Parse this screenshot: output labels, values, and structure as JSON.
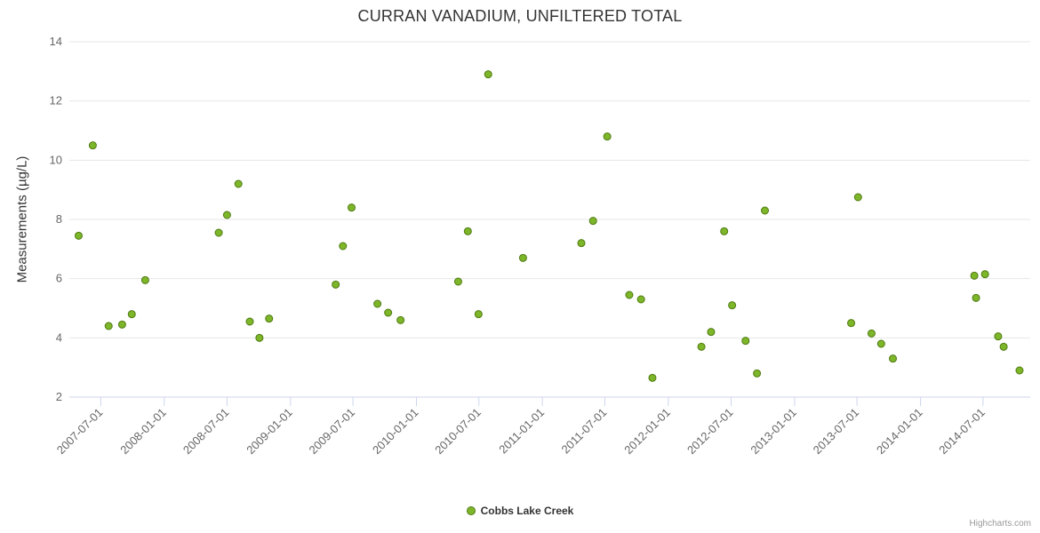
{
  "credit": "Highcharts.com",
  "chart_data": {
    "type": "scatter",
    "title": "CURRAN VANADIUM, UNFILTERED TOTAL",
    "xlabel": "",
    "ylabel": "Measurements (µg/L)",
    "ylim": [
      2,
      14
    ],
    "y_ticks": [
      2,
      4,
      6,
      8,
      10,
      12,
      14
    ],
    "x_ticks": [
      "2007-07-01",
      "2008-01-01",
      "2008-07-01",
      "2009-01-01",
      "2009-07-01",
      "2010-01-01",
      "2010-07-01",
      "2011-01-01",
      "2011-07-01",
      "2012-01-01",
      "2012-07-01",
      "2013-01-01",
      "2013-07-01",
      "2014-01-01",
      "2014-07-01"
    ],
    "x_range": [
      "2007-04-01",
      "2014-11-15"
    ],
    "grid": "horizontal-only",
    "legend_position": "bottom-center",
    "marker": {
      "color": "#7eb62a",
      "border": "#4d7a10",
      "radius": 4
    },
    "axis_line_color": "#ccd6eb",
    "grid_color": "#e6e6e6",
    "series": [
      {
        "name": "Cobbs Lake Creek",
        "points": [
          {
            "date": "2007-04-28",
            "value": 7.45
          },
          {
            "date": "2007-06-08",
            "value": 10.5
          },
          {
            "date": "2007-07-24",
            "value": 4.4
          },
          {
            "date": "2007-09-01",
            "value": 4.45
          },
          {
            "date": "2007-09-29",
            "value": 4.8
          },
          {
            "date": "2007-11-07",
            "value": 5.95
          },
          {
            "date": "2008-06-07",
            "value": 7.55
          },
          {
            "date": "2008-07-01",
            "value": 8.15
          },
          {
            "date": "2008-08-03",
            "value": 9.2
          },
          {
            "date": "2008-09-05",
            "value": 4.55
          },
          {
            "date": "2008-10-03",
            "value": 4.0
          },
          {
            "date": "2008-10-31",
            "value": 4.65
          },
          {
            "date": "2009-05-12",
            "value": 5.8
          },
          {
            "date": "2009-06-02",
            "value": 7.1
          },
          {
            "date": "2009-06-27",
            "value": 8.4
          },
          {
            "date": "2009-09-10",
            "value": 5.15
          },
          {
            "date": "2009-10-11",
            "value": 4.85
          },
          {
            "date": "2009-11-16",
            "value": 4.6
          },
          {
            "date": "2010-05-02",
            "value": 5.9
          },
          {
            "date": "2010-05-30",
            "value": 7.6
          },
          {
            "date": "2010-06-30",
            "value": 4.8
          },
          {
            "date": "2010-07-28",
            "value": 12.9
          },
          {
            "date": "2010-11-06",
            "value": 6.7
          },
          {
            "date": "2011-04-24",
            "value": 7.2
          },
          {
            "date": "2011-05-28",
            "value": 7.95
          },
          {
            "date": "2011-07-08",
            "value": 10.8
          },
          {
            "date": "2011-09-10",
            "value": 5.45
          },
          {
            "date": "2011-10-14",
            "value": 5.3
          },
          {
            "date": "2011-11-16",
            "value": 2.65
          },
          {
            "date": "2012-04-06",
            "value": 3.7
          },
          {
            "date": "2012-05-04",
            "value": 4.2
          },
          {
            "date": "2012-06-11",
            "value": 7.6
          },
          {
            "date": "2012-07-04",
            "value": 5.1
          },
          {
            "date": "2012-08-12",
            "value": 3.9
          },
          {
            "date": "2012-09-14",
            "value": 2.8
          },
          {
            "date": "2012-10-07",
            "value": 8.3
          },
          {
            "date": "2013-06-14",
            "value": 4.5
          },
          {
            "date": "2013-07-04",
            "value": 8.75
          },
          {
            "date": "2013-08-12",
            "value": 4.15
          },
          {
            "date": "2013-09-09",
            "value": 3.8
          },
          {
            "date": "2013-10-13",
            "value": 3.3
          },
          {
            "date": "2014-06-06",
            "value": 6.1
          },
          {
            "date": "2014-06-11",
            "value": 5.35
          },
          {
            "date": "2014-07-07",
            "value": 6.15
          },
          {
            "date": "2014-08-14",
            "value": 4.05
          },
          {
            "date": "2014-08-30",
            "value": 3.7
          },
          {
            "date": "2014-10-15",
            "value": 2.9
          }
        ]
      }
    ]
  }
}
